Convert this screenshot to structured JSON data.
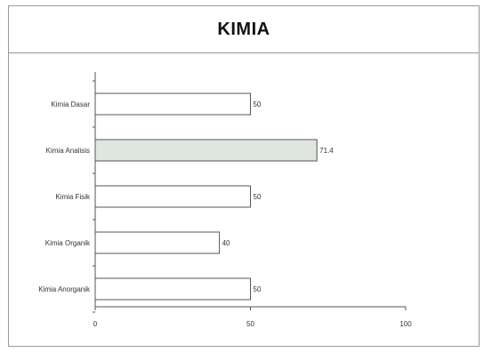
{
  "chart_data": {
    "type": "bar",
    "orientation": "horizontal",
    "title": "KIMIA",
    "xlabel": "",
    "ylabel": "",
    "categories": [
      "Kimia Dasar",
      "Kimia Analisis",
      "Kimia Fisik",
      "Kimia Organik",
      "Kimia Anorganik"
    ],
    "values": [
      50,
      71.4,
      50,
      40,
      50
    ],
    "value_labels": [
      "50",
      "71.4",
      "50",
      "40",
      "50"
    ],
    "xlim": [
      0,
      100
    ],
    "x_ticks": [
      "0",
      "50",
      "100"
    ],
    "grid": false,
    "legend": "none",
    "colors": {
      "bar_fill": "#ffffff",
      "bar_highlight_fill": "#dfe6df",
      "bar_stroke": "#555555",
      "axis": "#555555"
    },
    "highlighted_category": "Kimia Analisis"
  }
}
